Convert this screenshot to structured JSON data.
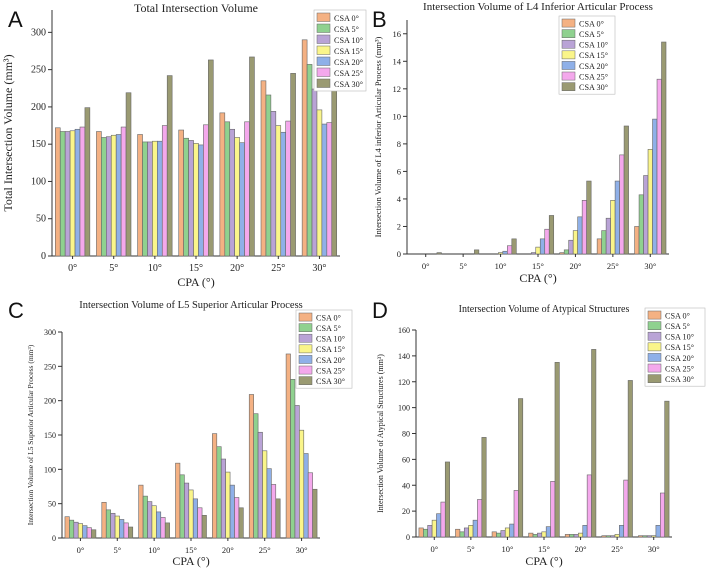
{
  "figure": {
    "xlabel": "CPA (°)"
  },
  "colors": [
    "#f4b183",
    "#8fd18f",
    "#b9a3d6",
    "#faf58a",
    "#8fb0e8",
    "#f4a8ec",
    "#9a9a72"
  ],
  "chart_data": [
    {
      "panel": "A",
      "type": "bar",
      "title": "Total Intersection Volume",
      "xlabel": "CPA (°)",
      "ylabel": "Total Intersection Volume (mm³)",
      "categories": [
        "0°",
        "5°",
        "10°",
        "15°",
        "20°",
        "25°",
        "30°"
      ],
      "ylim": [
        0,
        330
      ],
      "yticks": [
        0,
        50,
        100,
        150,
        200,
        250,
        300
      ],
      "legend_position": "top-right",
      "series": [
        {
          "name": "CSA 0°",
          "values": [
            172,
            167,
            163,
            169,
            192,
            235,
            290
          ]
        },
        {
          "name": "CSA 5°",
          "values": [
            167,
            159,
            153,
            158,
            180,
            216,
            257
          ]
        },
        {
          "name": "CSA 10°",
          "values": [
            167,
            160,
            153,
            155,
            170,
            194,
            224
          ]
        },
        {
          "name": "CSA 15°",
          "values": [
            168,
            162,
            154,
            151,
            159,
            175,
            196
          ]
        },
        {
          "name": "CSA 20°",
          "values": [
            170,
            163,
            154,
            149,
            152,
            166,
            177
          ]
        },
        {
          "name": "CSA 25°",
          "values": [
            173,
            173,
            175,
            176,
            180,
            181,
            179
          ]
        },
        {
          "name": "CSA 30°",
          "values": [
            199,
            219,
            242,
            263,
            267,
            245,
            234
          ]
        }
      ]
    },
    {
      "panel": "B",
      "type": "bar",
      "title": "Intersection Volume of L4 Inferior Articular Process",
      "xlabel": "CPA (°)",
      "ylabel": "Intersection Volume of L4 inferior Articular Process (mm³)",
      "categories": [
        "0°",
        "5°",
        "10°",
        "15°",
        "20°",
        "25°",
        "30°"
      ],
      "ylim": [
        0,
        17
      ],
      "yticks": [
        0,
        2,
        4,
        6,
        8,
        10,
        12,
        14,
        16
      ],
      "legend_position": "top-right",
      "series": [
        {
          "name": "CSA 0°",
          "values": [
            0,
            0,
            0,
            0,
            0.1,
            1.1,
            2.0
          ]
        },
        {
          "name": "CSA 5°",
          "values": [
            0,
            0,
            0,
            0,
            0.3,
            1.7,
            4.3
          ]
        },
        {
          "name": "CSA 10°",
          "values": [
            0,
            0,
            0,
            0.1,
            1.0,
            2.6,
            5.7
          ]
        },
        {
          "name": "CSA 15°",
          "values": [
            0,
            0,
            0.1,
            0.5,
            1.7,
            3.9,
            7.6
          ]
        },
        {
          "name": "CSA 20°",
          "values": [
            0,
            0,
            0.2,
            1.1,
            2.7,
            5.3,
            9.8
          ]
        },
        {
          "name": "CSA 25°",
          "values": [
            0,
            0,
            0.6,
            1.8,
            3.9,
            7.2,
            12.7
          ]
        },
        {
          "name": "CSA 30°",
          "values": [
            0.1,
            0.3,
            1.1,
            2.8,
            5.3,
            9.3,
            15.4
          ]
        }
      ]
    },
    {
      "panel": "C",
      "type": "bar",
      "title": "Intersection Volume of L5 Superior Articular Process",
      "xlabel": "CPA (°)",
      "ylabel": "Intersection Volume of L5 Superior Articular Process (mm³)",
      "categories": [
        "0°",
        "5°",
        "10°",
        "15°",
        "20°",
        "25°",
        "30°"
      ],
      "ylim": [
        0,
        300
      ],
      "yticks": [
        0,
        50,
        100,
        150,
        200,
        250,
        300
      ],
      "legend_position": "top-right",
      "series": [
        {
          "name": "CSA 0°",
          "values": [
            31,
            52,
            77,
            109,
            152,
            209,
            268
          ]
        },
        {
          "name": "CSA 5°",
          "values": [
            26,
            41,
            61,
            92,
            133,
            181,
            231
          ]
        },
        {
          "name": "CSA 10°",
          "values": [
            23,
            36,
            53,
            80,
            115,
            154,
            193
          ]
        },
        {
          "name": "CSA 15°",
          "values": [
            21,
            32,
            47,
            70,
            96,
            127,
            157
          ]
        },
        {
          "name": "CSA 20°",
          "values": [
            18,
            27,
            38,
            57,
            77,
            101,
            123
          ]
        },
        {
          "name": "CSA 25°",
          "values": [
            15,
            22,
            30,
            44,
            59,
            78,
            95
          ]
        },
        {
          "name": "CSA 30°",
          "values": [
            12,
            16,
            22,
            33,
            44,
            57,
            71
          ]
        }
      ]
    },
    {
      "panel": "D",
      "type": "bar",
      "title": "Intersection Volume of Atypical Structures",
      "xlabel": "CPA (°)",
      "ylabel": "Intersection Volume of Atypical Structures (mm³)",
      "categories": [
        "0°",
        "5°",
        "10°",
        "15°",
        "20°",
        "25°",
        "30°"
      ],
      "ylim": [
        0,
        160
      ],
      "yticks": [
        0,
        20,
        40,
        60,
        80,
        100,
        120,
        140,
        160
      ],
      "legend_position": "top-right",
      "series": [
        {
          "name": "CSA 0°",
          "values": [
            7,
            6,
            4,
            3,
            2,
            1,
            1
          ]
        },
        {
          "name": "CSA 5°",
          "values": [
            6,
            4,
            3,
            2,
            2,
            1,
            1
          ]
        },
        {
          "name": "CSA 10°",
          "values": [
            9,
            7,
            5,
            3,
            2,
            1,
            1
          ]
        },
        {
          "name": "CSA 15°",
          "values": [
            13,
            9,
            7,
            4,
            3,
            2,
            1
          ]
        },
        {
          "name": "CSA 20°",
          "values": [
            18,
            13,
            10,
            8,
            9,
            9,
            9
          ]
        },
        {
          "name": "CSA 25°",
          "values": [
            27,
            29,
            36,
            43,
            48,
            44,
            34
          ]
        },
        {
          "name": "CSA 30°",
          "values": [
            58,
            77,
            107,
            135,
            145,
            121,
            105
          ]
        }
      ]
    }
  ]
}
